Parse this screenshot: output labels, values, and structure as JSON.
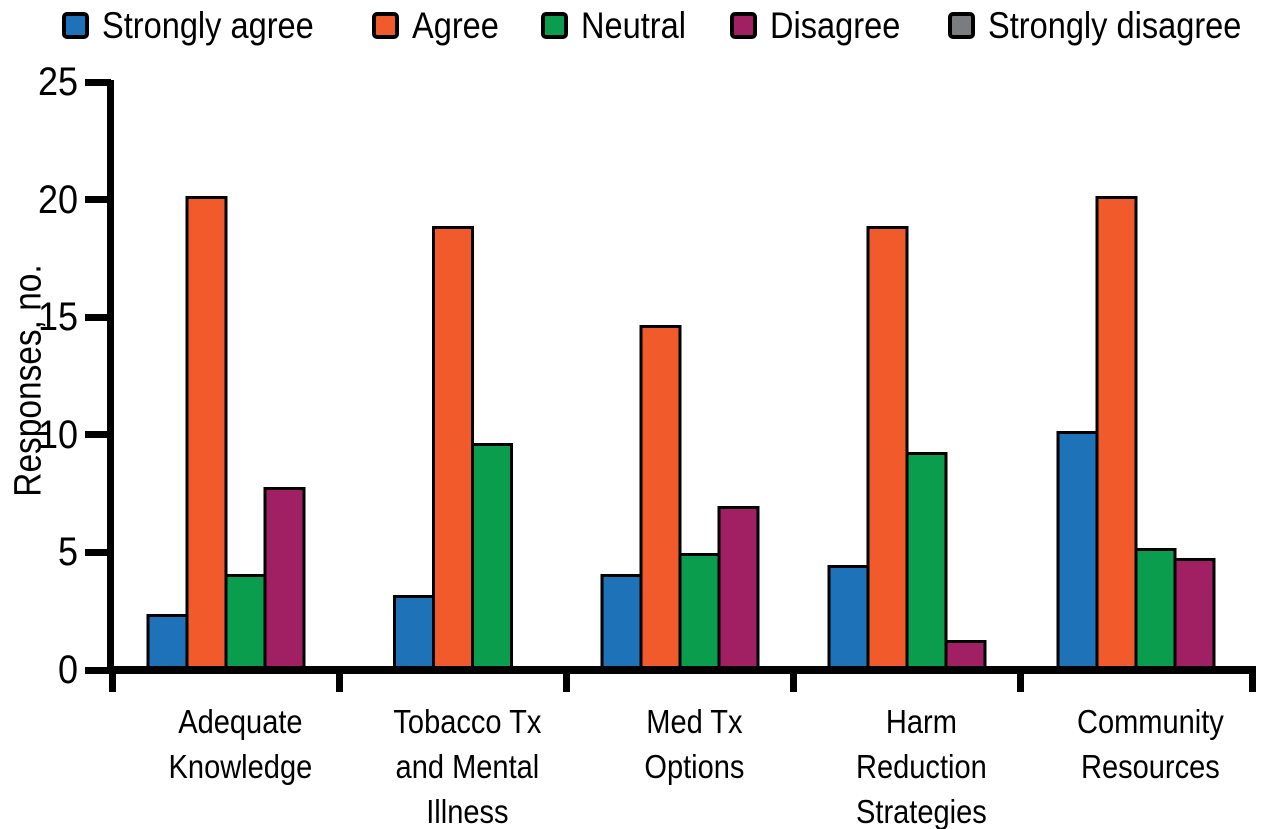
{
  "figure": {
    "background": "#ffffff",
    "axis_color": "#000000"
  },
  "chart_data": {
    "type": "bar",
    "title": "",
    "xlabel": "",
    "ylabel": "Responses, no.",
    "ylim": [
      0,
      25
    ],
    "yticks": [
      0,
      5,
      10,
      15,
      20,
      25
    ],
    "grid": false,
    "legend_position": "top",
    "categories": [
      "Adequate Knowledge",
      "Tobacco Tx and Mental Illness",
      "Med Tx Options",
      "Harm Reduction Strategies",
      "Community Resources"
    ],
    "category_label_lines": [
      [
        "Adequate",
        "Knowledge"
      ],
      [
        "Tobacco Tx",
        "and Mental",
        "Illness"
      ],
      [
        "Med Tx",
        "Options"
      ],
      [
        "Harm",
        "Reduction",
        "Strategies"
      ],
      [
        "Community",
        "Resources"
      ]
    ],
    "series": [
      {
        "name": "Strongly agree",
        "color": "#1D72B8",
        "values": [
          2.2,
          3.0,
          3.9,
          4.3,
          10.0
        ]
      },
      {
        "name": "Agree",
        "color": "#F15B2B",
        "values": [
          20.0,
          18.7,
          14.5,
          18.7,
          20.0
        ]
      },
      {
        "name": "Neutral",
        "color": "#0A9D4E",
        "values": [
          3.9,
          9.5,
          4.8,
          9.1,
          5.0
        ]
      },
      {
        "name": "Disagree",
        "color": "#A12064",
        "values": [
          7.6,
          0,
          6.8,
          1.1,
          4.6
        ]
      },
      {
        "name": "Strongly disagree",
        "color": "#7B7C7F",
        "values": [
          0,
          0,
          0,
          0,
          0
        ]
      }
    ]
  }
}
